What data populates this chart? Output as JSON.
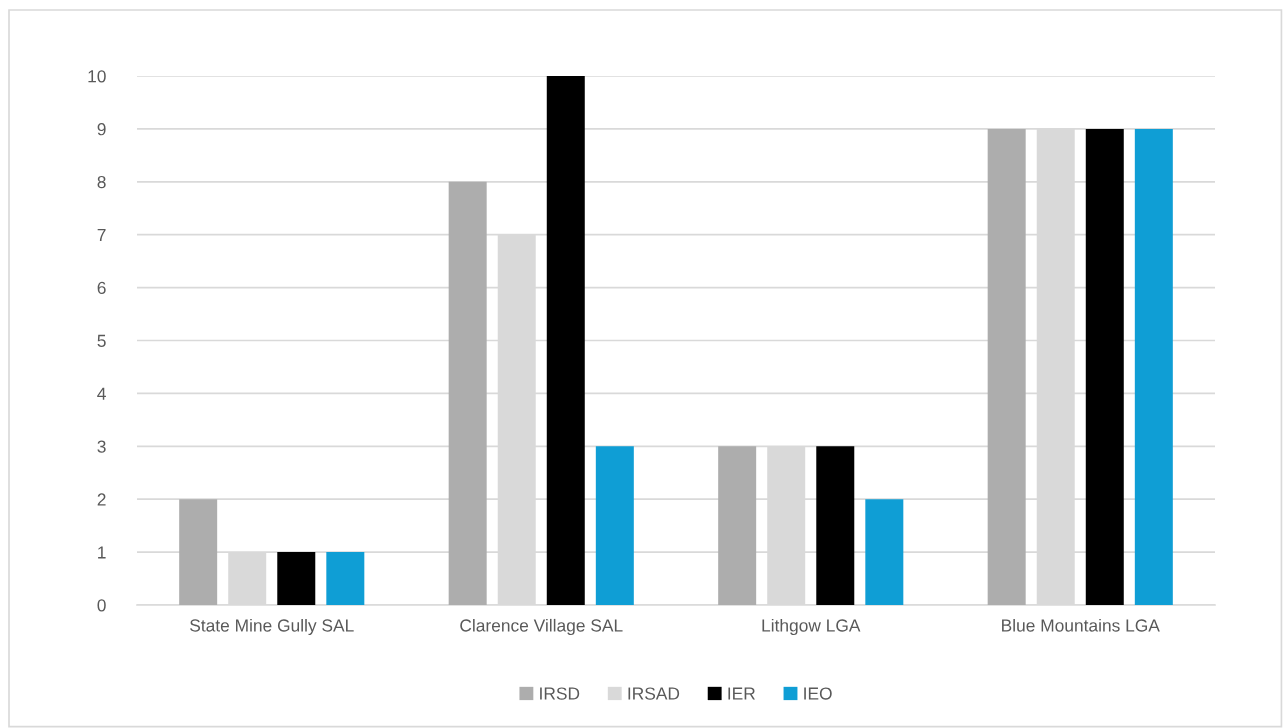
{
  "chart_data": {
    "type": "bar",
    "categories": [
      "State Mine Gully SAL",
      "Clarence Village SAL",
      "Lithgow LGA",
      "Blue Mountains LGA"
    ],
    "series": [
      {
        "name": "IRSD",
        "color": "#adadad",
        "values": [
          2,
          8,
          3,
          9
        ]
      },
      {
        "name": "IRSAD",
        "color": "#d9d9d9",
        "values": [
          1,
          7,
          3,
          9
        ]
      },
      {
        "name": "IER",
        "color": "#000000",
        "values": [
          1,
          10,
          3,
          9
        ]
      },
      {
        "name": "IEO",
        "color": "#0f9ed5",
        "values": [
          1,
          3,
          2,
          9
        ]
      }
    ],
    "ylim": [
      0,
      10
    ],
    "yticks": [
      0,
      1,
      2,
      3,
      4,
      5,
      6,
      7,
      8,
      9,
      10
    ],
    "grid": "y",
    "legend": "bottom"
  }
}
